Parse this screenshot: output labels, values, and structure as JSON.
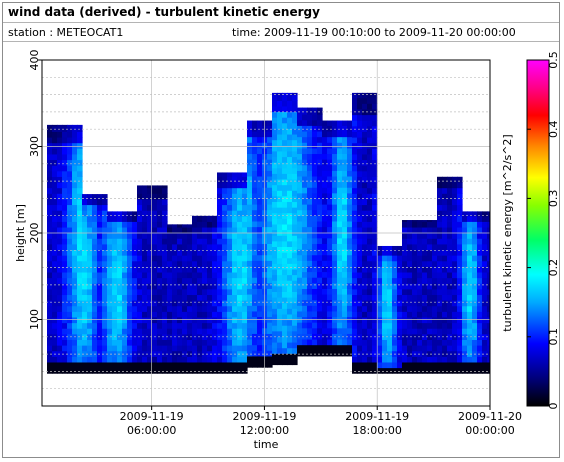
{
  "header": {
    "title": "wind data (derived) - turbulent kinetic energy",
    "station": "station : METEOCAT1",
    "time_range": "time: 2009-11-19 00:10:00 to 2009-11-20 00:00:00"
  },
  "chart_data": {
    "type": "heatmap",
    "title": "wind data (derived) - turbulent kinetic energy",
    "xlabel": "time",
    "ylabel": "height [m]",
    "colorbar_label": "turbulent kinetic energy [m^2/s^2]",
    "x_range": [
      "2009-11-19 00:10:00",
      "2009-11-20 00:00:00"
    ],
    "ylim": [
      0,
      400
    ],
    "clim": [
      0,
      0.5
    ],
    "y_ticks": [
      100,
      200,
      300,
      400
    ],
    "x_ticks": [
      {
        "value": "2009-11-19 06:00:00",
        "line1": "2009-11-19",
        "line2": "06:00:00"
      },
      {
        "value": "2009-11-19 12:00:00",
        "line1": "2009-11-19",
        "line2": "12:00:00"
      },
      {
        "value": "2009-11-19 18:00:00",
        "line1": "2009-11-19",
        "line2": "18:00:00"
      },
      {
        "value": "2009-11-20 00:00:00",
        "line1": "2009-11-20",
        "line2": "00:00:00"
      }
    ],
    "colorbar_ticks": [
      0,
      0.1,
      0.2,
      0.3,
      0.4,
      0.5
    ],
    "colormap": "jet",
    "grid": true,
    "valid_data_column_ranges_m": [
      {
        "from_h": 0.17,
        "to_h": 2.2,
        "bottom": 38,
        "top": 325
      },
      {
        "from_h": 2.2,
        "to_h": 3.4,
        "bottom": 38,
        "top": 245
      },
      {
        "from_h": 3.4,
        "to_h": 5.0,
        "bottom": 38,
        "top": 225
      },
      {
        "from_h": 5.0,
        "to_h": 6.6,
        "bottom": 38,
        "top": 255
      },
      {
        "from_h": 6.6,
        "to_h": 8.0,
        "bottom": 38,
        "top": 210
      },
      {
        "from_h": 8.0,
        "to_h": 9.4,
        "bottom": 38,
        "top": 220
      },
      {
        "from_h": 9.4,
        "to_h": 11.0,
        "bottom": 38,
        "top": 270
      },
      {
        "from_h": 11.0,
        "to_h": 12.4,
        "bottom": 45,
        "top": 330
      },
      {
        "from_h": 12.4,
        "to_h": 13.6,
        "bottom": 48,
        "top": 362
      },
      {
        "from_h": 13.6,
        "to_h": 15.0,
        "bottom": 58,
        "top": 345
      },
      {
        "from_h": 15.0,
        "to_h": 16.6,
        "bottom": 58,
        "top": 330
      },
      {
        "from_h": 16.6,
        "to_h": 17.8,
        "bottom": 38,
        "top": 362
      },
      {
        "from_h": 17.8,
        "to_h": 19.2,
        "bottom": 38,
        "top": 185
      },
      {
        "from_h": 19.2,
        "to_h": 21.0,
        "bottom": 38,
        "top": 215
      },
      {
        "from_h": 21.0,
        "to_h": 22.4,
        "bottom": 38,
        "top": 265
      },
      {
        "from_h": 22.4,
        "to_h": 24.0,
        "bottom": 38,
        "top": 225
      }
    ]
  }
}
